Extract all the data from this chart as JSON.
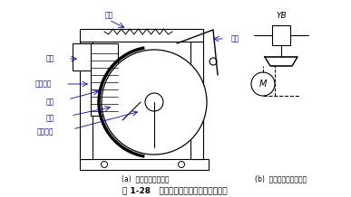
{
  "title": "图 1-28   电磁制动器的示意图及图形符号",
  "label_a": "(a)  电磁制动器示意图",
  "label_b": "(b)  电磁制动器图形符号",
  "bg_color": "#ffffff",
  "line_color": "#000000",
  "text_color": "#0000cd",
  "caption_color": "#000000",
  "labels_left": [
    "弹簧",
    "衔铁",
    "铁心线圈",
    "闸瓦",
    "闸轮",
    "电动机轴"
  ],
  "label_right": "杠杆",
  "symbol_top": "YB",
  "symbol_circle": "M"
}
